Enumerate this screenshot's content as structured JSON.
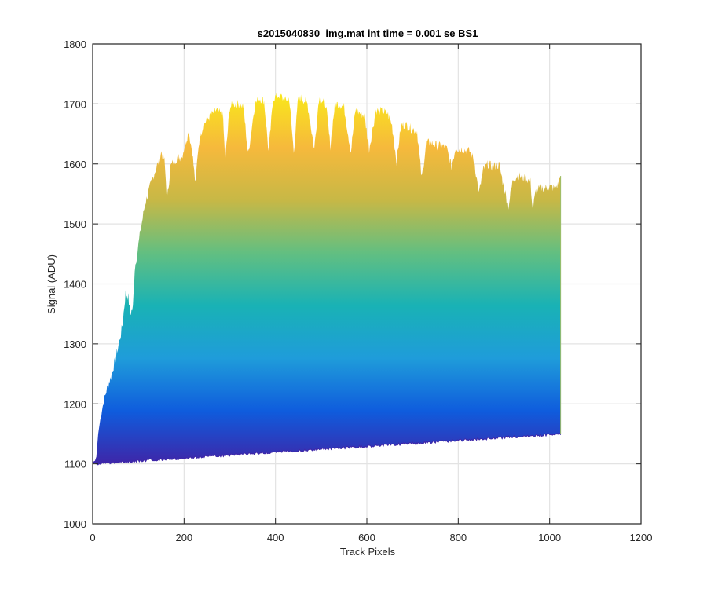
{
  "chart_data": {
    "type": "area",
    "title": "s2015040830_img.mat int time = 0.001 se   BS1",
    "xlabel": "Track Pixels",
    "ylabel": "Signal (ADU)",
    "xlim": [
      0,
      1200
    ],
    "ylim": [
      1000,
      1800
    ],
    "xticks": [
      0,
      200,
      400,
      600,
      800,
      1000,
      1200
    ],
    "yticks": [
      1000,
      1100,
      1200,
      1300,
      1400,
      1500,
      1600,
      1700,
      1800
    ],
    "grid": true,
    "colormap": [
      "#3e26a8",
      "#0f5cdd",
      "#1f9cda",
      "#19b2b5",
      "#62bf81",
      "#c7b846",
      "#f6b93c",
      "#f9e61c"
    ],
    "series": [
      {
        "role": "upper envelope",
        "x": [
          0,
          5,
          8,
          12,
          20,
          30,
          40,
          50,
          60,
          65,
          72,
          78,
          82,
          88,
          92,
          97,
          105,
          115,
          125,
          135,
          145,
          150,
          157,
          163,
          170,
          178,
          185,
          195,
          210,
          218,
          225,
          230,
          235,
          243,
          250,
          258,
          270,
          285,
          290,
          300,
          310,
          320,
          330,
          340,
          355,
          365,
          375,
          385,
          395,
          410,
          420,
          430,
          440,
          450,
          460,
          470,
          485,
          495,
          503,
          510,
          520,
          530,
          540,
          550,
          565,
          575,
          585,
          595,
          605,
          620,
          630,
          645,
          655,
          665,
          675,
          685,
          695,
          710,
          720,
          730,
          740,
          755,
          765,
          775,
          785,
          795,
          800,
          810,
          820,
          828,
          836,
          845,
          855,
          865,
          875,
          883,
          890,
          900,
          910,
          920,
          930,
          940,
          950,
          958,
          963,
          970,
          980,
          990,
          1000,
          1010,
          1018,
          1024
        ],
        "y": [
          1103,
          1105,
          1112,
          1150,
          1190,
          1222,
          1245,
          1275,
          1310,
          1330,
          1385,
          1378,
          1350,
          1360,
          1425,
          1450,
          1490,
          1535,
          1560,
          1585,
          1605,
          1620,
          1605,
          1540,
          1595,
          1605,
          1610,
          1612,
          1655,
          1620,
          1565,
          1620,
          1650,
          1665,
          1675,
          1680,
          1690,
          1680,
          1605,
          1695,
          1700,
          1700,
          1695,
          1615,
          1700,
          1710,
          1705,
          1620,
          1710,
          1715,
          1705,
          1710,
          1620,
          1712,
          1708,
          1700,
          1625,
          1710,
          1705,
          1700,
          1630,
          1700,
          1700,
          1695,
          1620,
          1690,
          1685,
          1680,
          1625,
          1690,
          1688,
          1685,
          1665,
          1605,
          1665,
          1665,
          1660,
          1655,
          1575,
          1635,
          1635,
          1630,
          1630,
          1625,
          1595,
          1630,
          1625,
          1625,
          1622,
          1620,
          1600,
          1550,
          1590,
          1600,
          1595,
          1598,
          1598,
          1560,
          1530,
          1575,
          1580,
          1578,
          1575,
          1570,
          1525,
          1555,
          1560,
          1560,
          1562,
          1560,
          1565,
          1580
        ]
      },
      {
        "role": "lower envelope",
        "x": [
          0,
          1024
        ],
        "y": [
          1100,
          1150
        ]
      }
    ]
  }
}
